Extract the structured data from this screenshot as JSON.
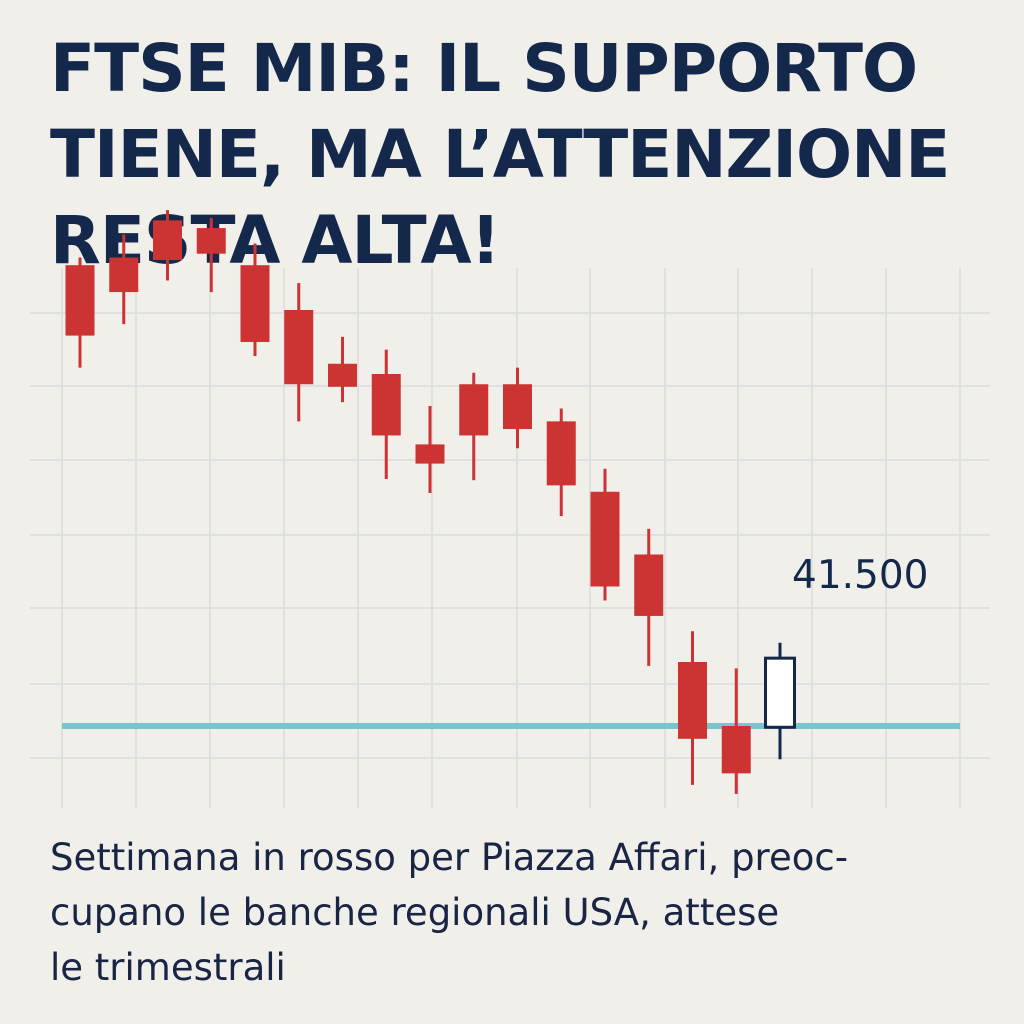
{
  "headline": {
    "lines": [
      "FTSE MIB: IL SUPPORTO",
      "TIENE, MA L’ATTENZIONE",
      "RESTA ALTA!"
    ]
  },
  "subtitle": {
    "lines": [
      "Settimana in rosso per Piazza Affari, preoc-",
      "cupano le banche regionali USA, attese",
      "le trimestrali"
    ]
  },
  "chart_data": {
    "type": "candlestick",
    "title": "",
    "xlabel": "",
    "ylabel": "",
    "grid": true,
    "ylim": [
      41000,
      46000
    ],
    "support_level": 41500,
    "support_label": "41.500",
    "colors": {
      "bearish": "#cc3333",
      "bullish_fill": "#ffffff",
      "bullish_stroke": "#14284b",
      "support": "#7cc3d0",
      "grid": "#dcdcdc"
    },
    "candles": [
      {
        "open": 45100,
        "close": 44550,
        "high": 45160,
        "low": 44300
      },
      {
        "open": 45160,
        "close": 44890,
        "high": 45340,
        "low": 44640
      },
      {
        "open": 45450,
        "close": 45140,
        "high": 45530,
        "low": 44980
      },
      {
        "open": 45390,
        "close": 45190,
        "high": 45470,
        "low": 44890
      },
      {
        "open": 45100,
        "close": 44500,
        "high": 45270,
        "low": 44390
      },
      {
        "open": 44750,
        "close": 44170,
        "high": 44960,
        "low": 43880
      },
      {
        "open": 44330,
        "close": 44150,
        "high": 44540,
        "low": 44030
      },
      {
        "open": 44250,
        "close": 43770,
        "high": 44440,
        "low": 43430
      },
      {
        "open": 43700,
        "close": 43550,
        "high": 44000,
        "low": 43320
      },
      {
        "open": 44170,
        "close": 43770,
        "high": 44260,
        "low": 43420
      },
      {
        "open": 44170,
        "close": 43820,
        "high": 44300,
        "low": 43670
      },
      {
        "open": 43880,
        "close": 43380,
        "high": 43980,
        "low": 43140
      },
      {
        "open": 43330,
        "close": 42590,
        "high": 43510,
        "low": 42480
      },
      {
        "open": 42840,
        "close": 42360,
        "high": 43040,
        "low": 41970
      },
      {
        "open": 42000,
        "close": 41400,
        "high": 42240,
        "low": 41040
      },
      {
        "open": 41500,
        "close": 41130,
        "high": 41950,
        "low": 40970
      },
      {
        "open": 41490,
        "close": 42030,
        "high": 42150,
        "low": 41240
      }
    ]
  }
}
